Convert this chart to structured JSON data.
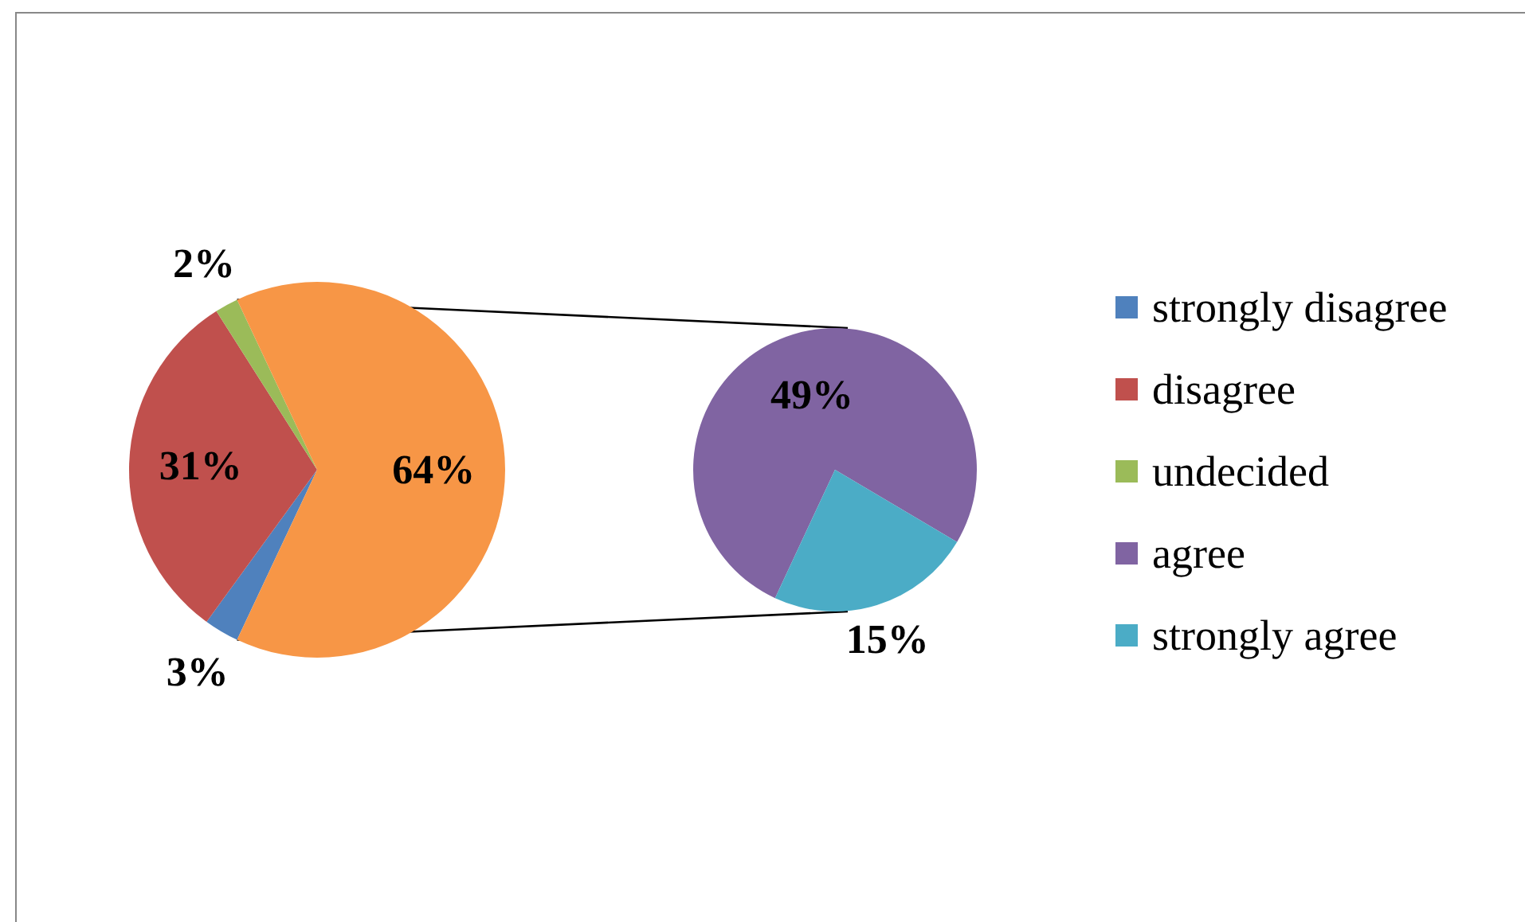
{
  "chart_data": [
    {
      "type": "pie",
      "categories": [
        "strongly disagree",
        "disagree",
        "undecided",
        null
      ],
      "values": [
        3,
        31,
        2,
        64
      ],
      "colors": [
        "#4f81bd",
        "#c0504d",
        "#9bbb59",
        "#f79646"
      ],
      "value_labels": [
        "3%",
        "31%",
        "2%",
        "64%"
      ],
      "legend": "right"
    },
    {
      "type": "pie",
      "categories": [
        "agree",
        "strongly agree"
      ],
      "values": [
        49,
        15
      ],
      "colors": [
        "#8064a2",
        "#4bacc6"
      ],
      "value_labels": [
        "49%",
        "15%"
      ],
      "legend": "right"
    }
  ]
}
